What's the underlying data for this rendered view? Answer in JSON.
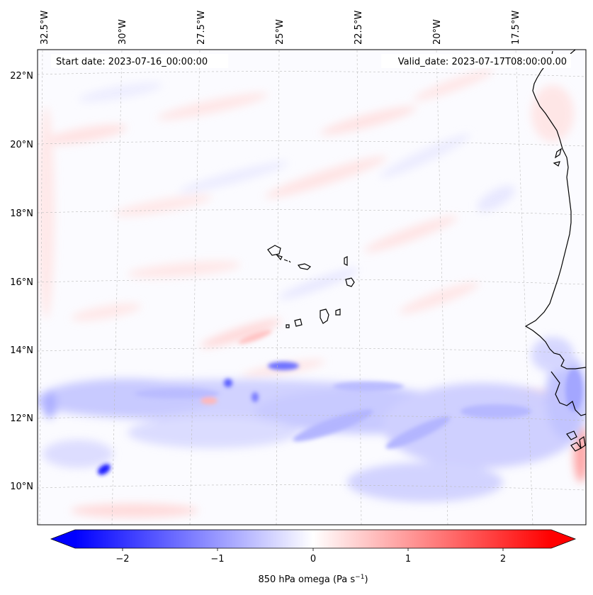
{
  "map": {
    "start_date": "Start date: 2023-07-16_00:00:00",
    "valid_date": "Valid_date: 2023-07-17T08:00:00.00",
    "lon_labels": [
      "32.5°W",
      "30°W",
      "27.5°W",
      "25°W",
      "22.5°W",
      "20°W",
      "17.5°W"
    ],
    "lat_labels": [
      "22°N",
      "20°N",
      "18°N",
      "16°N",
      "14°N",
      "12°N",
      "10°N"
    ],
    "colorbar": {
      "ticks": [
        "−2",
        "−1",
        "0",
        "1",
        "2"
      ],
      "label": "850 hPa omega (Pa s",
      "label_sup": "−1",
      "label_end": ")",
      "cmap": "bwr",
      "range": [
        -2.5,
        2.5
      ]
    },
    "colors": {
      "negative": "#0000ff",
      "neutral": "#ffffff",
      "positive": "#ff0000",
      "coast": "#000000"
    }
  }
}
